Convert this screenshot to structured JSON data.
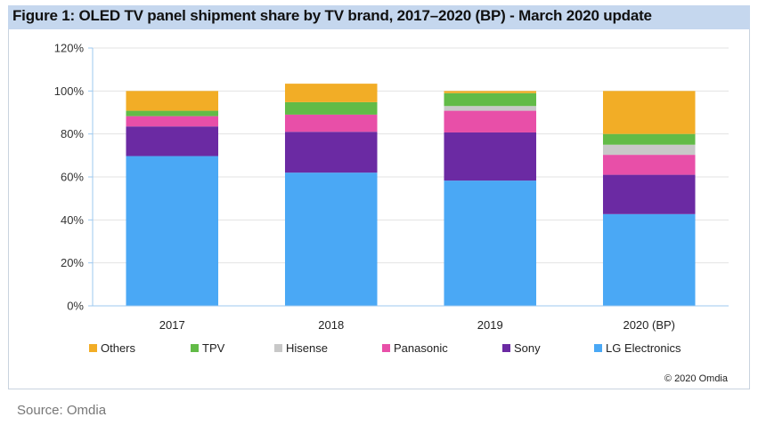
{
  "figure": {
    "title": "Figure 1: OLED TV panel shipment share by TV brand, 2017–2020 (BP) - March 2020 update",
    "copyright": "© 2020 Omdia",
    "source": "Source: Omdia"
  },
  "chart_data": {
    "type": "bar",
    "stacked": true,
    "title": "Figure 1: OLED TV panel shipment share by TV brand, 2017–2020 (BP) - March 2020 update",
    "xlabel": "",
    "ylabel": "",
    "categories": [
      "2017",
      "2018",
      "2019",
      "2020 (BP)"
    ],
    "ylim": [
      0,
      120
    ],
    "yticks": [
      "0%",
      "20%",
      "40%",
      "60%",
      "80%",
      "100%",
      "120%"
    ],
    "ytick_values": [
      0,
      20,
      40,
      60,
      80,
      100,
      120
    ],
    "grid": true,
    "legend_position": "bottom",
    "series": [
      {
        "name": "LG Electronics",
        "color": "#4aa8f5",
        "values": [
          69.7,
          62.0,
          58.3,
          42.7
        ]
      },
      {
        "name": "Sony",
        "color": "#6b2aa3",
        "values": [
          13.8,
          19.0,
          22.4,
          18.3
        ]
      },
      {
        "name": "Panasonic",
        "color": "#e84fa8",
        "values": [
          4.8,
          8.0,
          10.1,
          9.3
        ]
      },
      {
        "name": "Hisense",
        "color": "#c8c8c8",
        "values": [
          0,
          0,
          2.2,
          4.7
        ]
      },
      {
        "name": "TPV",
        "color": "#62bb47",
        "values": [
          2.5,
          5.8,
          6.0,
          5.0
        ]
      },
      {
        "name": "Others",
        "color": "#f2ad26",
        "values": [
          9.2,
          8.6,
          1.0,
          20.0
        ]
      }
    ],
    "legend_order": [
      "Others",
      "TPV",
      "Hisense",
      "Panasonic",
      "Sony",
      "LG Electronics"
    ]
  }
}
